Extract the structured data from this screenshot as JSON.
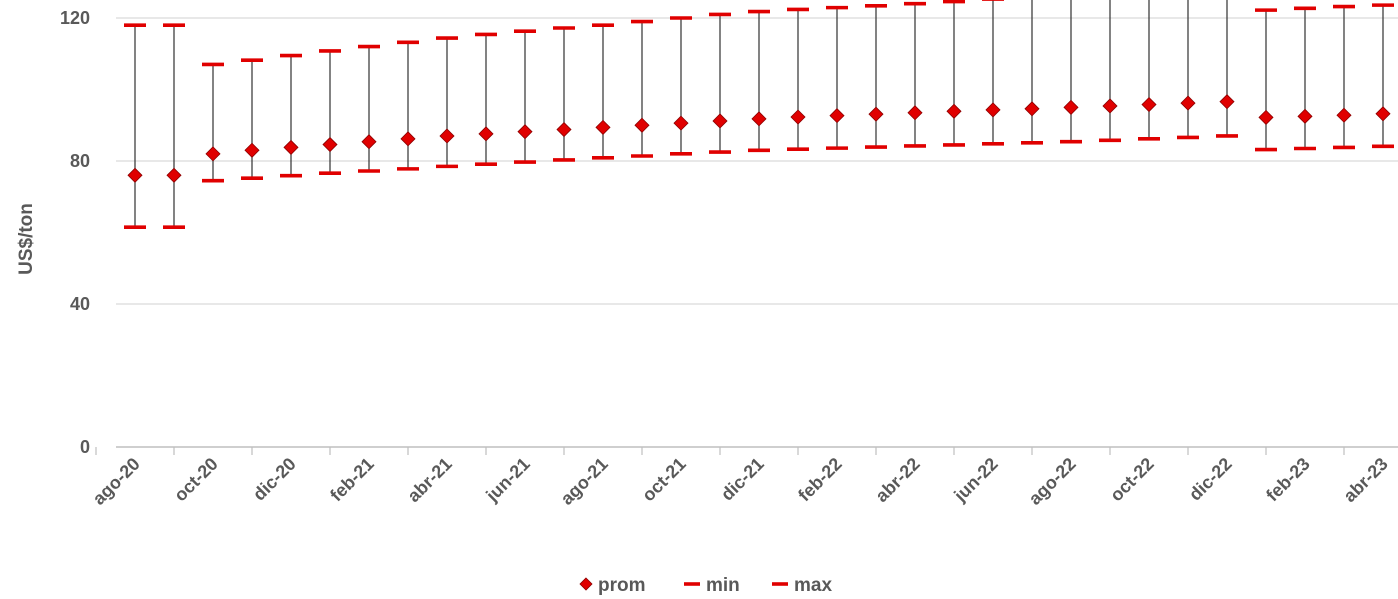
{
  "chart_data": {
    "type": "scatter",
    "title": "",
    "xlabel": "",
    "ylabel": "US$/ton",
    "ylim": [
      0,
      130
    ],
    "yticks": [
      0,
      40,
      80,
      120
    ],
    "grid": true,
    "legend_position": "bottom",
    "colors": {
      "marker": "#e00000",
      "marker_edge": "#8b0000",
      "errorbar": "#404040",
      "gridline": "#d9d9d9",
      "axis": "#bfbfbf"
    },
    "x": [
      "ago-20",
      "sep-20",
      "oct-20",
      "nov-20",
      "dic-20",
      "ene-21",
      "feb-21",
      "mar-21",
      "abr-21",
      "may-21",
      "jun-21",
      "jul-21",
      "ago-21",
      "sep-21",
      "oct-21",
      "nov-21",
      "dic-21",
      "ene-22",
      "feb-22",
      "mar-22",
      "abr-22",
      "may-22",
      "jun-22",
      "jul-22",
      "ago-22",
      "sep-22",
      "oct-22",
      "nov-22",
      "dic-22",
      "ene-23",
      "feb-23",
      "mar-23",
      "abr-23"
    ],
    "xtick_labels": [
      "ago-20",
      "oct-20",
      "dic-20",
      "feb-21",
      "abr-21",
      "jun-21",
      "ago-21",
      "oct-21",
      "dic-21",
      "feb-22",
      "abr-22",
      "jun-22",
      "ago-22",
      "oct-22",
      "dic-22",
      "feb-23",
      "abr-23"
    ],
    "series": [
      {
        "name": "prom",
        "marker": "diamond",
        "values": [
          76.0,
          76.0,
          82.0,
          83.0,
          83.8,
          84.6,
          85.4,
          86.2,
          87.0,
          87.6,
          88.2,
          88.8,
          89.4,
          90.0,
          90.6,
          91.2,
          91.8,
          92.3,
          92.7,
          93.1,
          93.5,
          93.9,
          94.3,
          94.6,
          95.0,
          95.4,
          95.8,
          96.2,
          96.6,
          92.2,
          92.5,
          92.8,
          93.2
        ]
      },
      {
        "name": "min",
        "marker": "dash",
        "values": [
          61.5,
          61.5,
          74.5,
          75.2,
          75.9,
          76.6,
          77.2,
          77.8,
          78.5,
          79.1,
          79.7,
          80.3,
          80.9,
          81.4,
          82.0,
          82.5,
          83.0,
          83.3,
          83.6,
          83.9,
          84.2,
          84.5,
          84.8,
          85.1,
          85.4,
          85.8,
          86.2,
          86.6,
          87.0,
          83.2,
          83.5,
          83.8,
          84.1
        ]
      },
      {
        "name": "max",
        "marker": "dash",
        "values": [
          118.0,
          118.0,
          107.0,
          108.2,
          109.5,
          110.8,
          112.0,
          113.2,
          114.4,
          115.4,
          116.3,
          117.2,
          118.0,
          119.0,
          120.0,
          121.0,
          121.8,
          122.4,
          122.9,
          123.4,
          124.0,
          124.6,
          125.3,
          126.0,
          126.8,
          127.6,
          128.4,
          129.2,
          130.0,
          122.2,
          122.7,
          123.2,
          123.6
        ]
      }
    ]
  }
}
